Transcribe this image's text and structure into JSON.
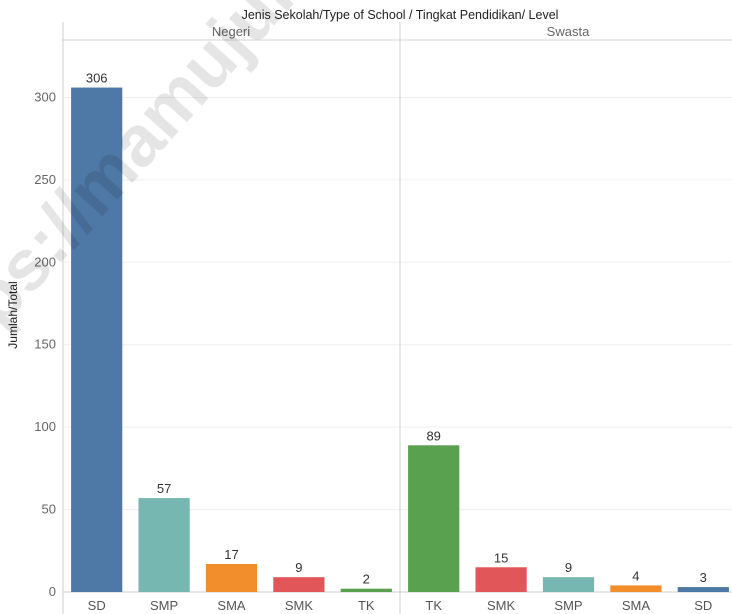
{
  "chart_data": {
    "type": "bar",
    "title": "Jenis Sekolah/Type of School  /  Tingkat Pendidikan/ Level",
    "ylabel": "Jumlah/Total",
    "ylim": [
      0,
      330
    ],
    "yticks": [
      0,
      50,
      100,
      150,
      200,
      250,
      300
    ],
    "grid": true,
    "panels": [
      {
        "name": "Negeri",
        "categories": [
          "SD",
          "SMP",
          "SMA",
          "SMK",
          "TK"
        ],
        "values": [
          306,
          57,
          17,
          9,
          2
        ],
        "colors": [
          "#4e79a7",
          "#76b7b2",
          "#f28e2b",
          "#e15759",
          "#59a14f"
        ]
      },
      {
        "name": "Swasta",
        "categories": [
          "TK",
          "SMK",
          "SMP",
          "SMA",
          "SD"
        ],
        "values": [
          89,
          15,
          9,
          4,
          3
        ],
        "colors": [
          "#59a14f",
          "#e15759",
          "#76b7b2",
          "#f28e2b",
          "#4e79a7"
        ]
      }
    ]
  },
  "watermark": "ps://mamujuka"
}
